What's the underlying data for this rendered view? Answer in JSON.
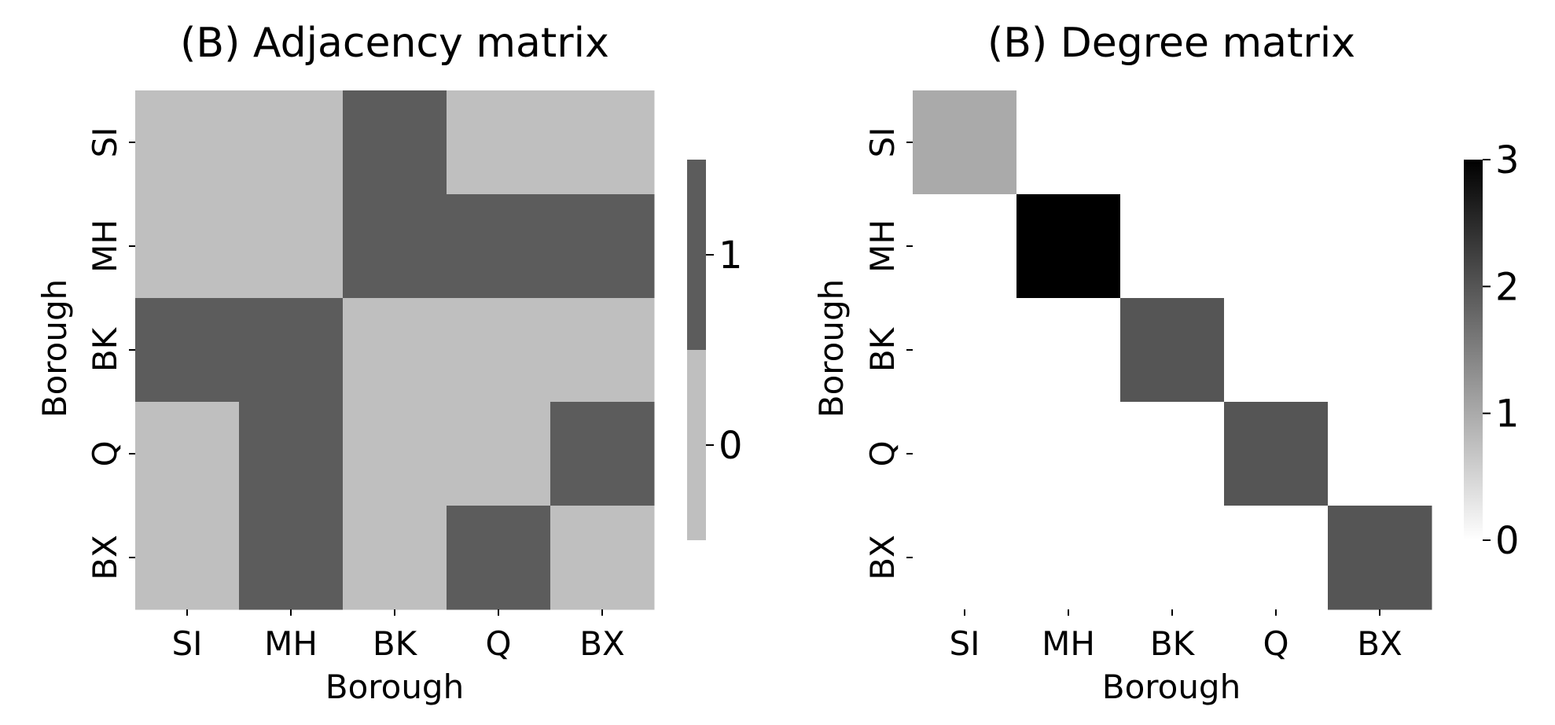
{
  "chart_data": [
    {
      "type": "heatmap",
      "title": "(B) Adjacency matrix",
      "xlabel": "Borough",
      "ylabel": "Borough",
      "x_categories": [
        "SI",
        "MH",
        "BK",
        "Q",
        "BX"
      ],
      "y_categories": [
        "SI",
        "MH",
        "BK",
        "Q",
        "BX"
      ],
      "values": [
        [
          0,
          0,
          1,
          0,
          0
        ],
        [
          0,
          0,
          1,
          1,
          1
        ],
        [
          1,
          1,
          0,
          0,
          0
        ],
        [
          0,
          1,
          0,
          0,
          1
        ],
        [
          0,
          1,
          0,
          1,
          0
        ]
      ],
      "colorbar": {
        "type": "discrete",
        "ticks": [
          {
            "value": 1,
            "label": "1"
          },
          {
            "value": 0,
            "label": "0"
          }
        ],
        "colors": {
          "0": "#bfbfbf",
          "1": "#5c5c5c"
        }
      }
    },
    {
      "type": "heatmap",
      "title": "(B) Degree matrix",
      "xlabel": "Borough",
      "ylabel": "Borough",
      "x_categories": [
        "SI",
        "MH",
        "BK",
        "Q",
        "BX"
      ],
      "y_categories": [
        "SI",
        "MH",
        "BK",
        "Q",
        "BX"
      ],
      "values": [
        [
          1,
          0,
          0,
          0,
          0
        ],
        [
          0,
          3,
          0,
          0,
          0
        ],
        [
          0,
          0,
          2,
          0,
          0
        ],
        [
          0,
          0,
          0,
          2,
          0
        ],
        [
          0,
          0,
          0,
          0,
          2
        ]
      ],
      "colorbar": {
        "type": "continuous",
        "range": [
          0,
          3
        ],
        "ticks": [
          {
            "value": 3,
            "label": "3"
          },
          {
            "value": 2,
            "label": "2"
          },
          {
            "value": 1,
            "label": "1"
          },
          {
            "value": 0,
            "label": "0"
          }
        ],
        "colors": {
          "low": "#ffffff",
          "high": "#000000"
        }
      }
    }
  ]
}
